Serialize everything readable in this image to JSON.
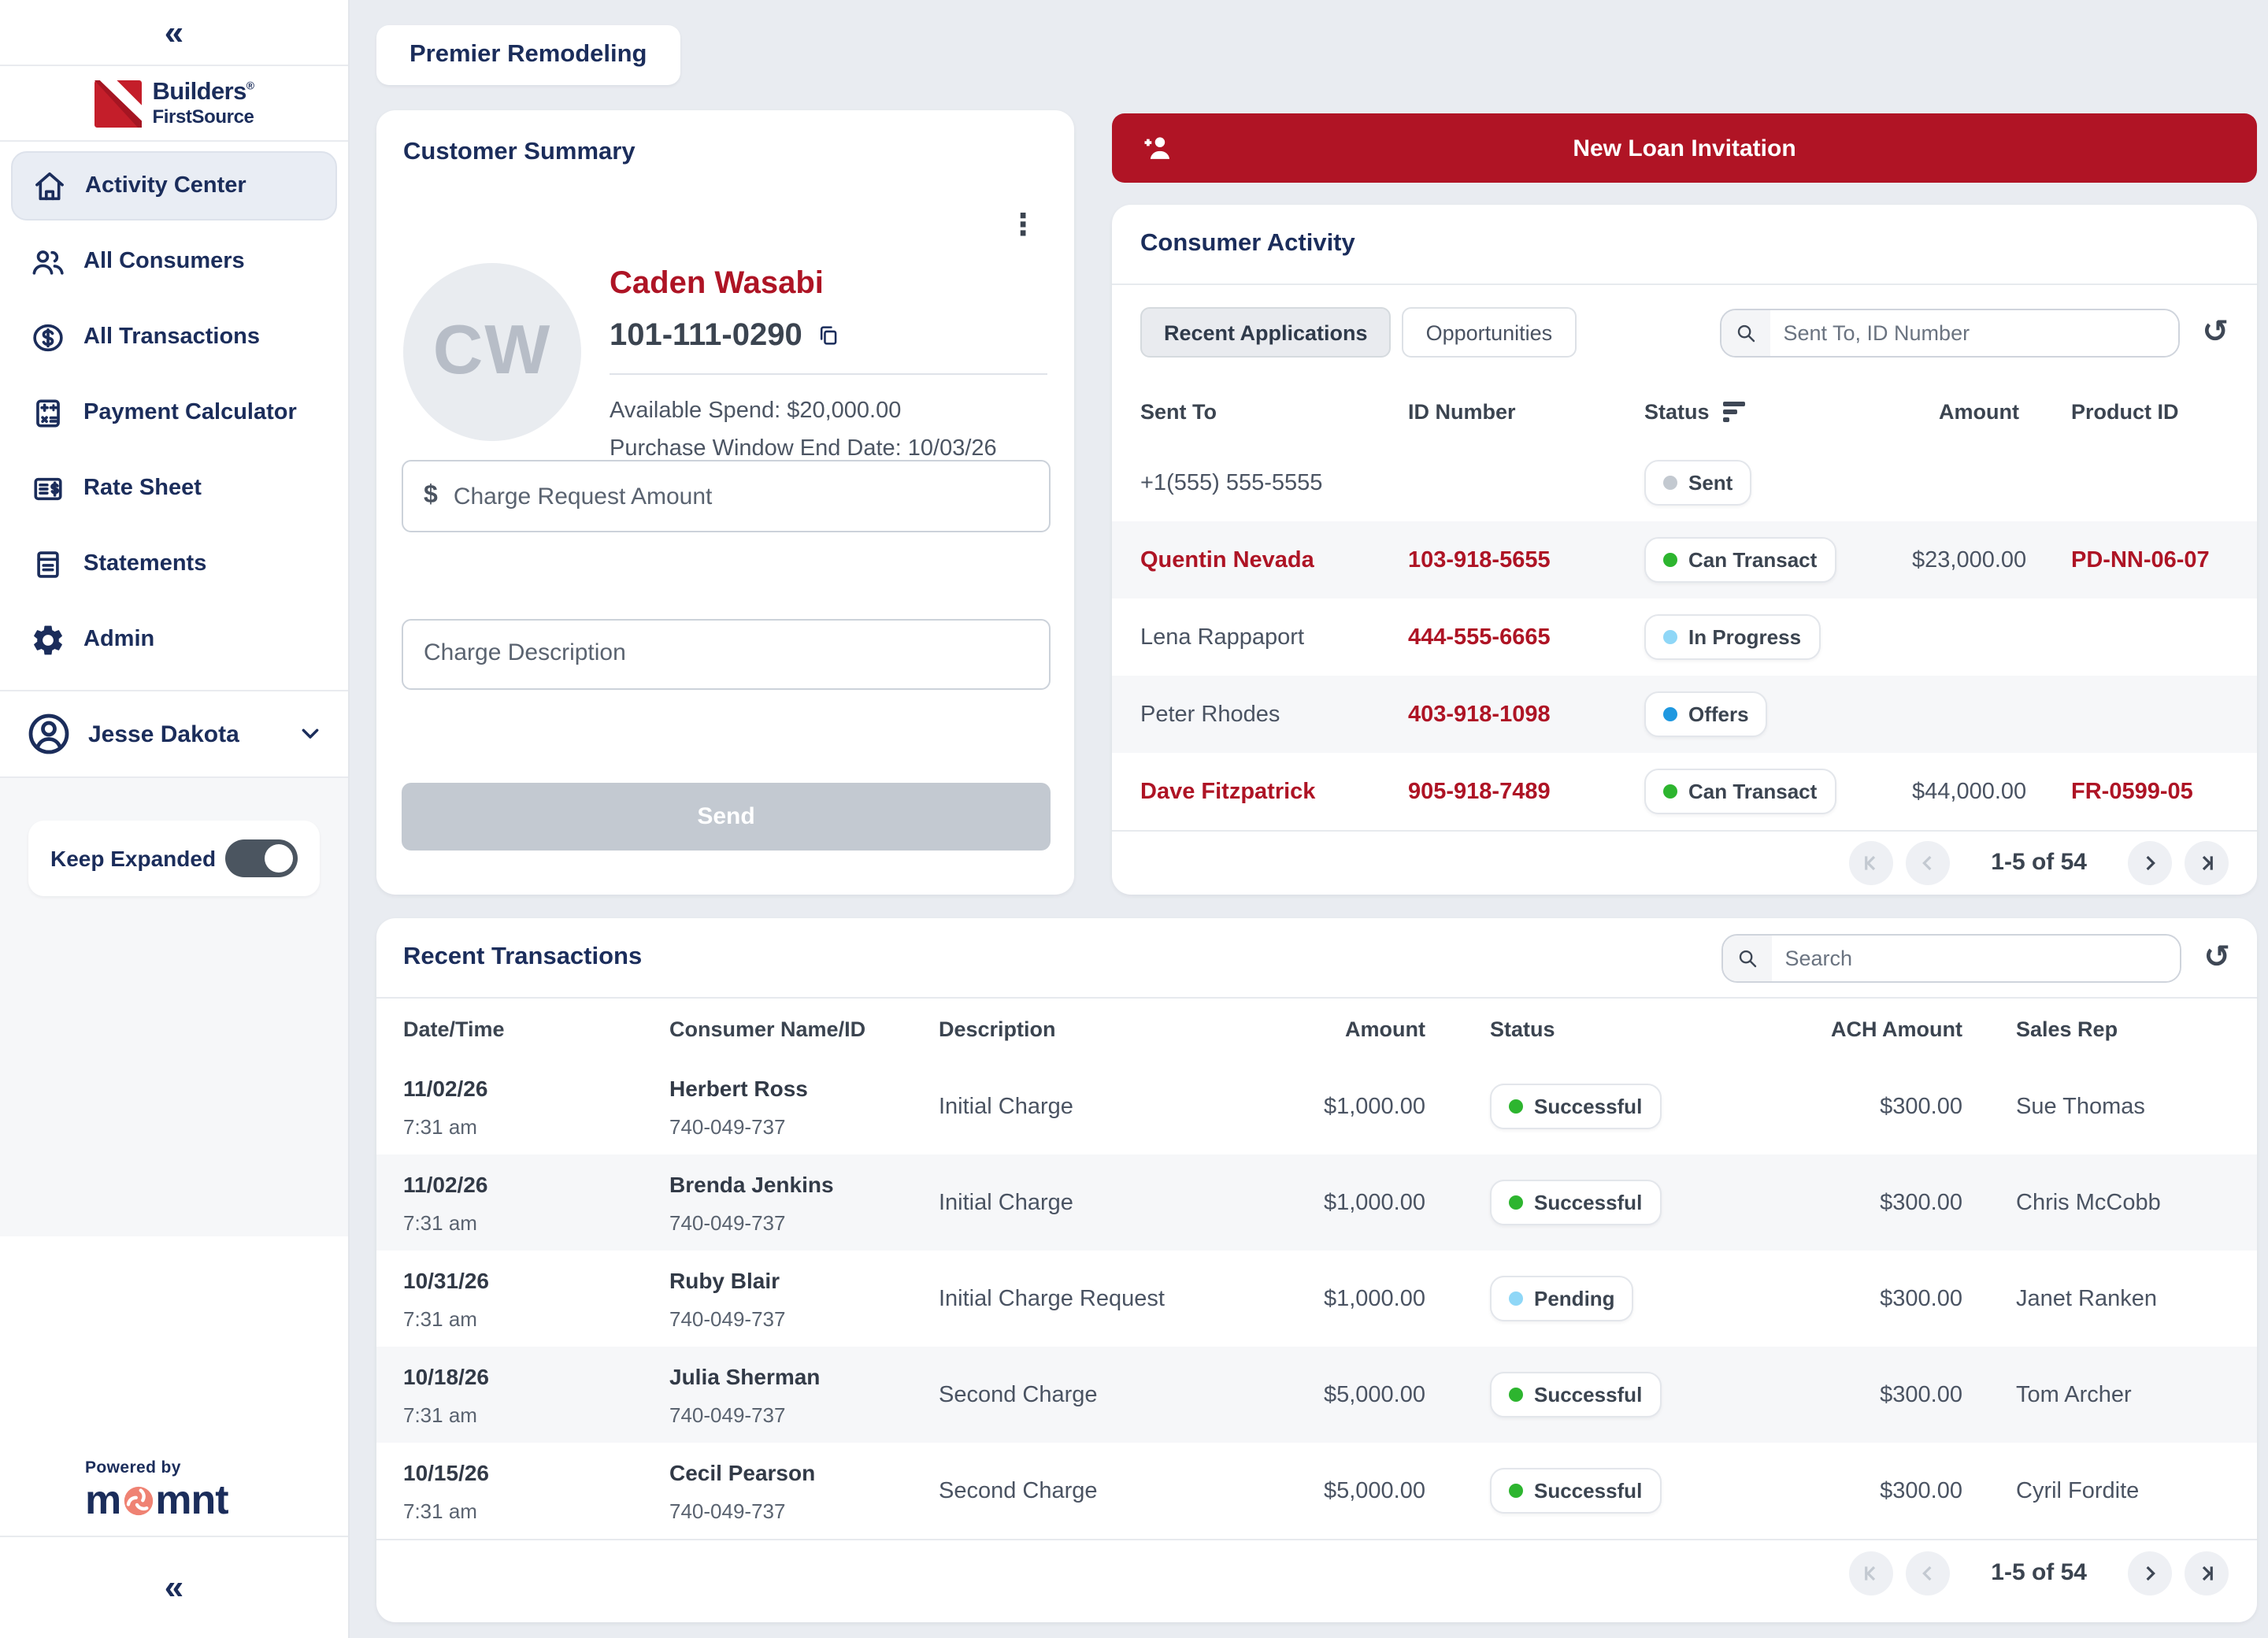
{
  "brand": {
    "builders_line1": "Builders",
    "builders_reg": "®",
    "builders_line2": "FirstSource",
    "powered_by": "Powered by",
    "momnt_pre": "m",
    "momnt_post": "mnt"
  },
  "sidebar": {
    "collapse_icon": "«",
    "nav": [
      {
        "label": "Activity Center",
        "icon": "home",
        "active": true
      },
      {
        "label": "All Consumers",
        "icon": "users",
        "active": false
      },
      {
        "label": "All Transactions",
        "icon": "transactions",
        "active": false
      },
      {
        "label": "Payment Calculator",
        "icon": "calculator",
        "active": false
      },
      {
        "label": "Rate Sheet",
        "icon": "ratesheet",
        "active": false
      },
      {
        "label": "Statements",
        "icon": "statements",
        "active": false
      },
      {
        "label": "Admin",
        "icon": "gear",
        "active": false
      }
    ],
    "user": {
      "name": "Jesse Dakota"
    },
    "keep_expanded_label": "Keep Expanded",
    "keep_expanded_on": true
  },
  "header": {
    "company_tab": "Premier Remodeling"
  },
  "customer_summary": {
    "title": "Customer Summary",
    "initials": "CW",
    "name": "Caden Wasabi",
    "phone": "101-111-0290",
    "available_spend": "Available Spend: $20,000.00",
    "purchase_window": "Purchase Window End Date: 10/03/26",
    "amount_prefix": "$",
    "amount_placeholder": "Charge Request Amount",
    "description_placeholder": "Charge Description",
    "send_label": "Send"
  },
  "new_loan": {
    "label": "New Loan Invitation"
  },
  "consumer_activity": {
    "title": "Consumer Activity",
    "tabs": [
      {
        "label": "Recent Applications",
        "active": true
      },
      {
        "label": "Opportunities",
        "active": false
      }
    ],
    "search_placeholder": "Sent To, ID Number",
    "columns": [
      "Sent To",
      "ID Number",
      "Status",
      "Amount",
      "Product ID"
    ],
    "rows": [
      {
        "sent_to": "+1(555) 555-5555",
        "sent_to_style": "gray",
        "id_number": "",
        "status": "Sent",
        "amount": "",
        "product_id": ""
      },
      {
        "sent_to": "Quentin Nevada",
        "sent_to_style": "red",
        "id_number": "103-918-5655",
        "status": "Can Transact",
        "amount": "$23,000.00",
        "product_id": "PD-NN-06-07"
      },
      {
        "sent_to": "Lena Rappaport",
        "sent_to_style": "gray",
        "id_number": "444-555-6665",
        "status": "In Progress",
        "amount": "",
        "product_id": ""
      },
      {
        "sent_to": "Peter Rhodes",
        "sent_to_style": "gray",
        "id_number": "403-918-1098",
        "status": "Offers",
        "amount": "",
        "product_id": ""
      },
      {
        "sent_to": "Dave Fitzpatrick",
        "sent_to_style": "red",
        "id_number": "905-918-7489",
        "status": "Can Transact",
        "amount": "$44,000.00",
        "product_id": "FR-0599-05"
      }
    ],
    "pagination": {
      "range": "1-5 of 54"
    }
  },
  "recent_transactions": {
    "title": "Recent Transactions",
    "search_placeholder": "Search",
    "columns": [
      "Date/Time",
      "Consumer Name/ID",
      "Description",
      "Amount",
      "Status",
      "ACH Amount",
      "Sales Rep"
    ],
    "rows": [
      {
        "date": "11/02/26",
        "time": "7:31 am",
        "name": "Herbert Ross",
        "consumer_id": "740-049-737",
        "description": "Initial Charge",
        "amount": "$1,000.00",
        "status": "Successful",
        "ach_amount": "$300.00",
        "sales_rep": "Sue Thomas"
      },
      {
        "date": "11/02/26",
        "time": "7:31 am",
        "name": "Brenda Jenkins",
        "consumer_id": "740-049-737",
        "description": "Initial Charge",
        "amount": "$1,000.00",
        "status": "Successful",
        "ach_amount": "$300.00",
        "sales_rep": "Chris McCobb"
      },
      {
        "date": "10/31/26",
        "time": "7:31 am",
        "name": "Ruby Blair",
        "consumer_id": "740-049-737",
        "description": "Initial Charge Request",
        "amount": "$1,000.00",
        "status": "Pending",
        "ach_amount": "$300.00",
        "sales_rep": "Janet Ranken"
      },
      {
        "date": "10/18/26",
        "time": "7:31 am",
        "name": "Julia Sherman",
        "consumer_id": "740-049-737",
        "description": "Second Charge",
        "amount": "$5,000.00",
        "status": "Successful",
        "ach_amount": "$300.00",
        "sales_rep": "Tom Archer"
      },
      {
        "date": "10/15/26",
        "time": "7:31 am",
        "name": "Cecil Pearson",
        "consumer_id": "740-049-737",
        "description": "Second Charge",
        "amount": "$5,000.00",
        "status": "Successful",
        "ach_amount": "$300.00",
        "sales_rep": "Cyril Fordite"
      }
    ],
    "pagination": {
      "range": "1-5 of 54"
    }
  },
  "status_colors": {
    "Sent": "#c3c9d0",
    "Can Transact": "#2db52f",
    "In Progress": "#8fd7f7",
    "Offers": "#1f98e0",
    "Successful": "#2db52f",
    "Pending": "#8fd7f7"
  },
  "colors": {
    "accent_red": "#b01425",
    "navy": "#1b2d5b"
  }
}
